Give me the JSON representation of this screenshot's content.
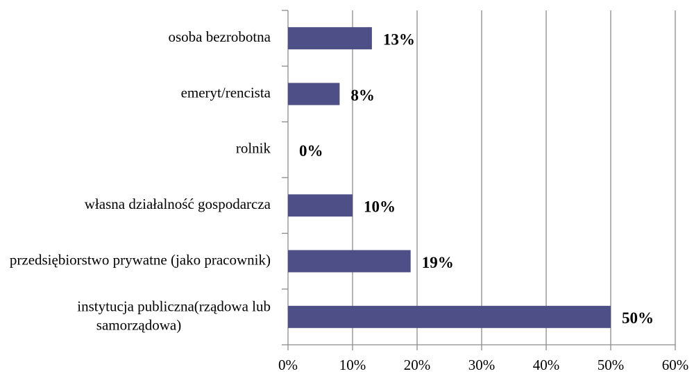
{
  "chart_data": {
    "type": "bar",
    "orientation": "horizontal",
    "categories": [
      "osoba bezrobotna",
      "emeryt/rencista",
      "rolnik",
      "własna działalność gospodarcza",
      "przedsiębiorstwo prywatne (jako pracownik)",
      "instytucja publiczna(rządowa lub samorządowa)"
    ],
    "values": [
      13,
      8,
      0,
      10,
      19,
      50
    ],
    "value_labels": [
      "13%",
      "8%",
      "0%",
      "10%",
      "19%",
      "50%"
    ],
    "color": "#4f4f88",
    "xlim": [
      0,
      60
    ],
    "xticks": [
      {
        "value": 0,
        "label": "0%"
      },
      {
        "value": 10,
        "label": "10%"
      },
      {
        "value": 20,
        "label": "20%"
      },
      {
        "value": 30,
        "label": "30%"
      },
      {
        "value": 40,
        "label": "40%"
      },
      {
        "value": 50,
        "label": "50%"
      },
      {
        "value": 60,
        "label": "60%"
      }
    ],
    "grid": true
  }
}
